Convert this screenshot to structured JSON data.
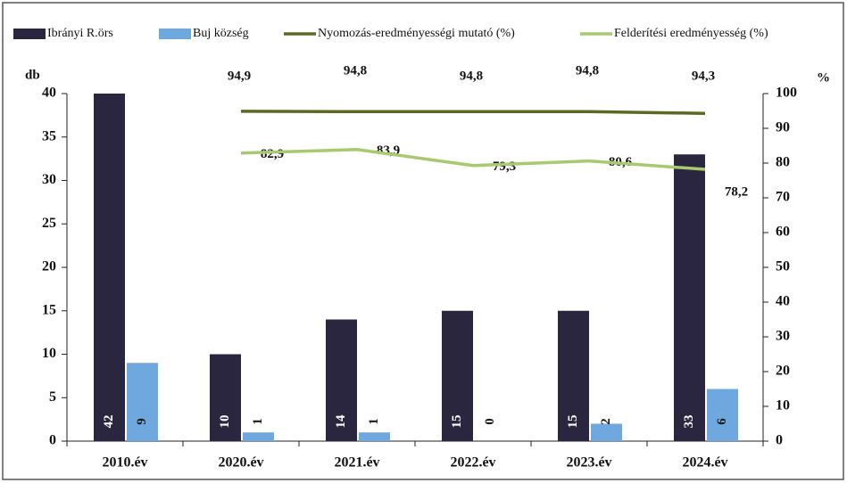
{
  "chart_data": {
    "type": "bar_line",
    "categories": [
      "2010.év",
      "2020.év",
      "2021.év",
      "2022.év",
      "2023.év",
      "2024.év"
    ],
    "ylabel": "db",
    "y2label": "%",
    "ylim": [
      0,
      40
    ],
    "yticks": [
      0,
      5,
      10,
      15,
      20,
      25,
      30,
      35,
      40
    ],
    "y2lim": [
      0,
      100
    ],
    "y2ticks": [
      0,
      10,
      20,
      30,
      40,
      50,
      60,
      70,
      80,
      90,
      100
    ],
    "series": [
      {
        "name": "Ibrányi R.örs",
        "type": "bar",
        "color": "#2b2640",
        "values": [
          42,
          10,
          14,
          15,
          15,
          33
        ]
      },
      {
        "name": "Buj község",
        "type": "bar",
        "color": "#6fa8de",
        "values": [
          9,
          1,
          1,
          0,
          2,
          6
        ]
      },
      {
        "name": "Nyomozás-eredményességi mutató (%)",
        "type": "line",
        "axis": "y2",
        "color": "#5b6a22",
        "values": [
          null,
          94.9,
          94.8,
          94.8,
          94.8,
          94.3
        ],
        "value_labels": [
          null,
          "94,9",
          "94,8",
          "94,8",
          "94,8",
          "94,3"
        ]
      },
      {
        "name": "Felderítési eredményesség (%)",
        "type": "line",
        "axis": "y2",
        "color": "#a9c970",
        "values": [
          null,
          82.9,
          83.9,
          79.3,
          80.6,
          78.2
        ],
        "value_labels": [
          null,
          "82,9",
          "83,9",
          "79,3",
          "80,6",
          "78,2"
        ]
      }
    ]
  }
}
